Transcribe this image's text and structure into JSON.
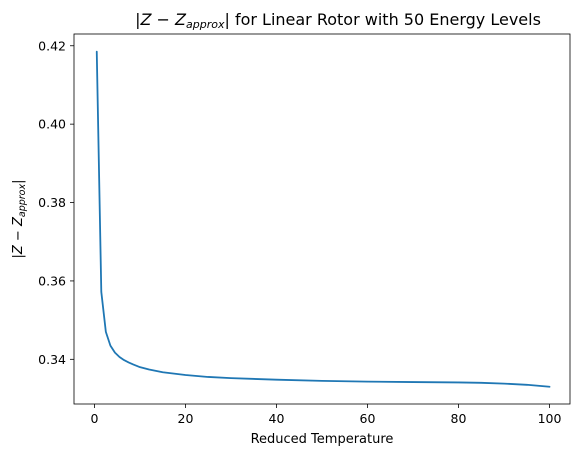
{
  "chart_data": {
    "type": "line",
    "title": {
      "bar_open": "|",
      "Z": "Z",
      "minus": " − ",
      "Z2": "Z",
      "sub": "approx",
      "bar_close": "|",
      "rest": " for Linear Rotor with 50 Energy Levels"
    },
    "xlabel": "Reduced Temperature",
    "ylabel": {
      "bar_open": "|",
      "Z": "Z",
      "minus": " − ",
      "Z2": "Z",
      "sub": "approx",
      "bar_close": "|"
    },
    "xlim": [
      -4.5,
      104.5
    ],
    "ylim": [
      0.3286,
      0.423
    ],
    "xticks": [
      0,
      20,
      40,
      60,
      80,
      100
    ],
    "xtick_labels": [
      "0",
      "20",
      "40",
      "60",
      "80",
      "100"
    ],
    "yticks": [
      0.34,
      0.36,
      0.38,
      0.4,
      0.42
    ],
    "ytick_labels": [
      "0.34",
      "0.36",
      "0.38",
      "0.40",
      "0.42"
    ],
    "grid": false,
    "series": [
      {
        "color": "#1f77b4",
        "x": [
          0.5,
          1.5,
          2.5,
          3.5,
          4.5,
          5.5,
          6.5,
          7.5,
          8.5,
          10,
          12,
          15,
          20,
          25,
          30,
          40,
          50,
          60,
          70,
          80,
          85,
          90,
          95,
          100
        ],
        "y": [
          0.4185,
          0.3572,
          0.347,
          0.3435,
          0.3417,
          0.3406,
          0.3398,
          0.3392,
          0.3387,
          0.338,
          0.3374,
          0.3367,
          0.336,
          0.3355,
          0.3352,
          0.3348,
          0.3345,
          0.3343,
          0.3342,
          0.3341,
          0.334,
          0.3338,
          0.3335,
          0.333
        ]
      }
    ]
  }
}
